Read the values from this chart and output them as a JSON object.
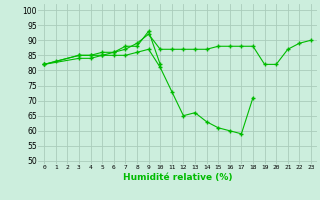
{
  "xlabel": "Humidité relative (%)",
  "bg_color": "#cceedd",
  "grid_color": "#aaccbb",
  "line_color": "#00bb00",
  "xlim": [
    -0.5,
    23.5
  ],
  "ylim": [
    49,
    102
  ],
  "yticks": [
    50,
    55,
    60,
    65,
    70,
    75,
    80,
    85,
    90,
    95,
    100
  ],
  "xticks": [
    0,
    1,
    2,
    3,
    4,
    5,
    6,
    7,
    8,
    9,
    10,
    11,
    12,
    13,
    14,
    15,
    16,
    17,
    18,
    19,
    20,
    21,
    22,
    23
  ],
  "series": [
    [
      82,
      83,
      null,
      85,
      85,
      85,
      86,
      87,
      89,
      92,
      87,
      87,
      87,
      87,
      87,
      88,
      88,
      88,
      88,
      82,
      82,
      87,
      89,
      90
    ],
    [
      82,
      null,
      null,
      85,
      85,
      86,
      86,
      88,
      88,
      93,
      82,
      null,
      null,
      null,
      null,
      null,
      null,
      null,
      null,
      null,
      null,
      null,
      null,
      null
    ],
    [
      82,
      null,
      null,
      84,
      84,
      85,
      85,
      85,
      86,
      87,
      81,
      73,
      65,
      66,
      63,
      61,
      60,
      59,
      71,
      null,
      null,
      null,
      null,
      null
    ]
  ]
}
